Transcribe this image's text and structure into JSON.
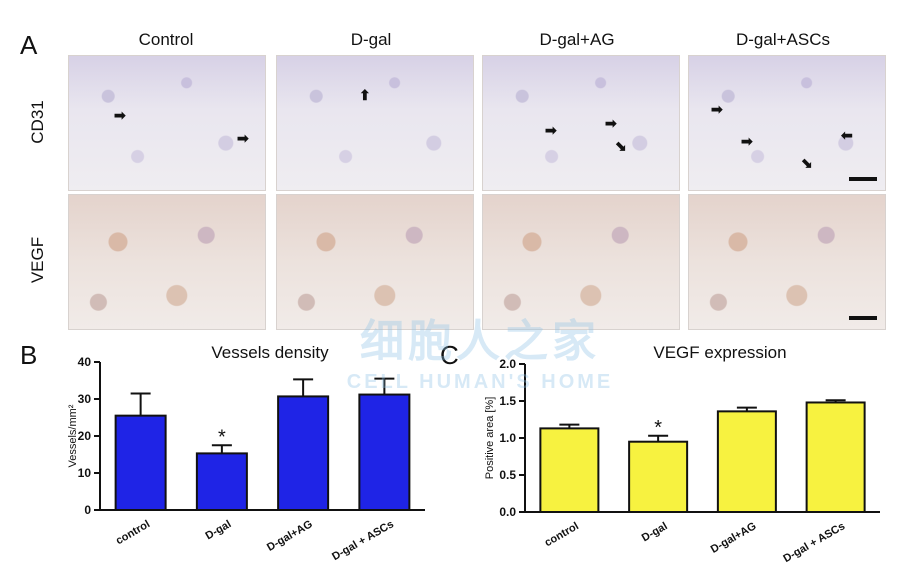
{
  "panel_a": {
    "letter": "A",
    "columns": [
      "Control",
      "D-gal",
      "D-gal+AG",
      "D-gal+ASCs"
    ],
    "rows": [
      "CD31",
      "VEGF"
    ],
    "arrow_glyphs": {
      "right": "➡",
      "left": "⬅",
      "up": "⬆",
      "down_right": "⬊",
      "down_left": "⬋"
    }
  },
  "chart_data": [
    {
      "panel": "B",
      "type": "bar",
      "title": "Vessels density",
      "ylabel": "Vessels/mm²",
      "categories": [
        "control",
        "D-gal",
        "D-gal+AG",
        "D-gal + ASCs"
      ],
      "values": [
        25.5,
        15.3,
        30.7,
        31.2
      ],
      "errors": [
        6.0,
        2.2,
        4.6,
        4.3
      ],
      "significance": [
        "",
        "*",
        "",
        ""
      ],
      "ylim": [
        0,
        40
      ],
      "yticks": [
        "0",
        "10",
        "20",
        "30",
        "40"
      ],
      "bar_color": "#1f24e6"
    },
    {
      "panel": "C",
      "type": "bar",
      "title": "VEGF expression",
      "ylabel": "Positive area [%]",
      "categories": [
        "control",
        "D-gal",
        "D-gal+AG",
        "D-gal + ASCs"
      ],
      "values": [
        1.13,
        0.95,
        1.36,
        1.48
      ],
      "errors": [
        0.05,
        0.08,
        0.05,
        0.03
      ],
      "significance": [
        "",
        "*",
        "",
        ""
      ],
      "ylim": [
        0,
        2.0
      ],
      "yticks": [
        "0.0",
        "0.5",
        "1.0",
        "1.5",
        "2.0"
      ],
      "bar_color": "#f7f240"
    }
  ],
  "watermark": {
    "cn": "细胞人之家",
    "en": "CELL HUMAN'S HOME"
  }
}
